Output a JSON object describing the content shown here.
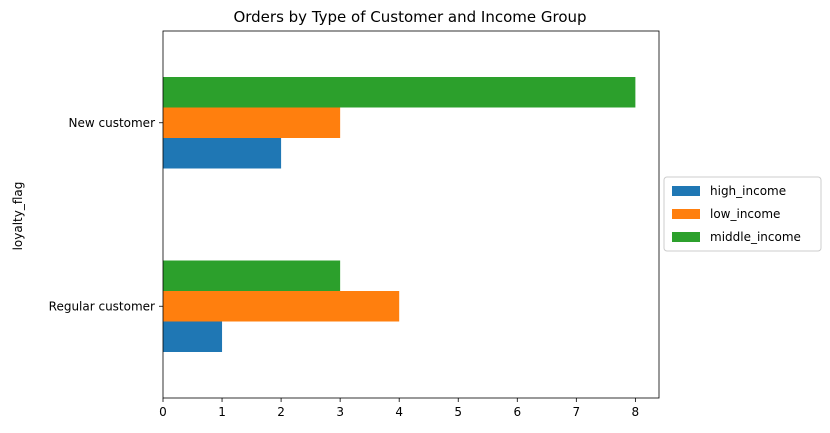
{
  "chart_data": {
    "type": "bar",
    "orientation": "horizontal",
    "title": "Orders by Type of Customer and Income Group",
    "xlabel": "",
    "ylabel": "loyalty_flag",
    "categories": [
      "Regular customer",
      "New customer"
    ],
    "series": [
      {
        "name": "high_income",
        "color": "#1f77b4",
        "values": [
          1,
          2
        ]
      },
      {
        "name": "low_income",
        "color": "#ff7f0e",
        "values": [
          4,
          3
        ]
      },
      {
        "name": "middle_income",
        "color": "#2ca02c",
        "values": [
          3,
          8
        ]
      }
    ],
    "xlim": [
      0,
      8.4
    ],
    "xticks": [
      0,
      1,
      2,
      3,
      4,
      5,
      6,
      7,
      8
    ],
    "grid": false,
    "legend_position": "right"
  }
}
